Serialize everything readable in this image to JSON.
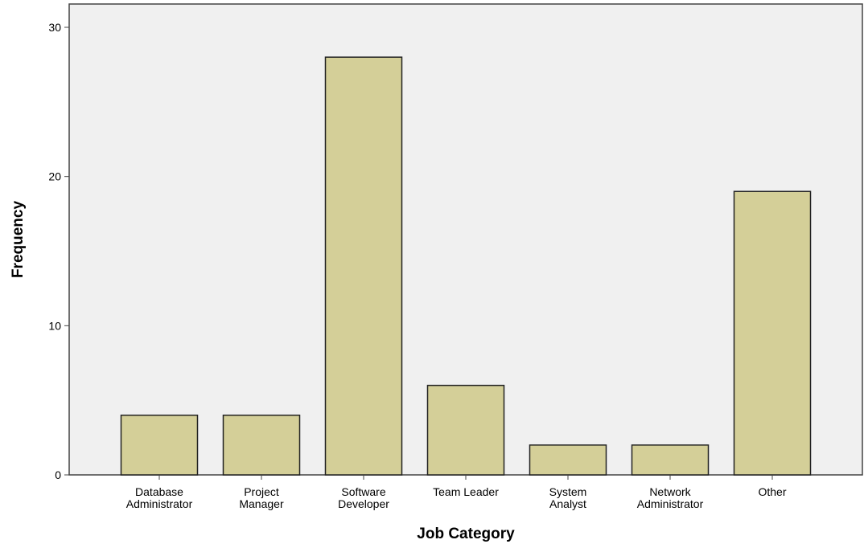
{
  "chart_data": {
    "type": "bar",
    "title": "",
    "xlabel": "Job Category",
    "ylabel": "Frequency",
    "categories": [
      [
        "Database",
        "Administrator"
      ],
      [
        "Project",
        "Manager"
      ],
      [
        "Software",
        "Developer"
      ],
      [
        "Team Leader"
      ],
      [
        "System",
        "Analyst"
      ],
      [
        "Network",
        "Administrator"
      ],
      [
        "Other"
      ]
    ],
    "values": [
      4,
      4,
      28,
      6,
      2,
      2,
      19
    ],
    "ylim": [
      0,
      32
    ],
    "yticks": [
      0,
      10,
      20,
      30
    ],
    "grid": false,
    "legend": "none",
    "colors": {
      "bar_fill": "#d4cf98",
      "bar_stroke": "#222222",
      "plot_background": "#f0f0f0",
      "axis": "#444444"
    }
  }
}
